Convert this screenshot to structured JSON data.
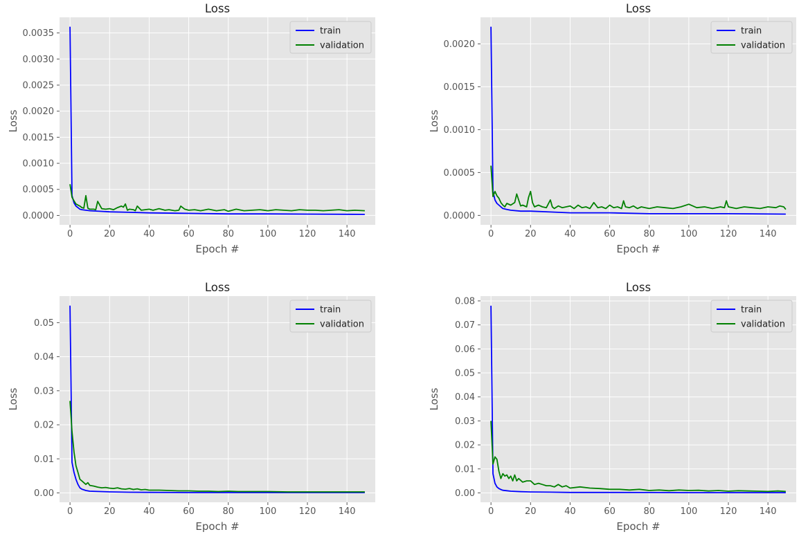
{
  "chart_data": [
    {
      "type": "line",
      "title": "Loss",
      "xlabel": "Epoch #",
      "ylabel": "Loss",
      "xlim": [
        -5.3,
        154.3
      ],
      "ylim": [
        -0.00018,
        0.0038
      ],
      "xticks": [
        "0",
        "20",
        "40",
        "60",
        "80",
        "100",
        "120",
        "140"
      ],
      "yticks": [
        "0.0000",
        "0.0005",
        "0.0010",
        "0.0015",
        "0.0020",
        "0.0025",
        "0.0030",
        "0.0035"
      ],
      "grid": true,
      "legend": "top-right",
      "legend_entries": [
        "train",
        "validation"
      ],
      "series": [
        {
          "name": "train",
          "color": "#0000ff",
          "x": [
            0,
            1,
            2,
            3,
            4,
            5,
            6,
            8,
            10,
            15,
            20,
            30,
            40,
            60,
            80,
            100,
            120,
            149
          ],
          "y": [
            0.00362,
            0.00038,
            0.00024,
            0.00018,
            0.00015,
            0.00012,
            0.00011,
            0.0001,
            9e-05,
            8e-05,
            7e-05,
            6e-05,
            5e-05,
            4e-05,
            3e-05,
            3e-05,
            2.5e-05,
            2e-05
          ]
        },
        {
          "name": "validation",
          "color": "#008000",
          "x": [
            0,
            1,
            2,
            3,
            4,
            5,
            6,
            7,
            8,
            9,
            10,
            12,
            13,
            14,
            16,
            18,
            20,
            22,
            24,
            26,
            27,
            28,
            29,
            30,
            32,
            33,
            34,
            36,
            38,
            40,
            42,
            45,
            48,
            50,
            53,
            55,
            56,
            58,
            60,
            63,
            66,
            70,
            74,
            78,
            80,
            84,
            88,
            92,
            96,
            100,
            104,
            108,
            112,
            116,
            120,
            124,
            128,
            132,
            136,
            140,
            144,
            149
          ],
          "y": [
            0.0006,
            0.00035,
            0.00028,
            0.00022,
            0.0002,
            0.00018,
            0.00015,
            0.00014,
            0.00038,
            0.00014,
            0.00012,
            0.00012,
            0.00011,
            0.00027,
            0.00013,
            0.00012,
            0.00013,
            0.00011,
            0.00015,
            0.00018,
            0.00016,
            0.00022,
            0.0001,
            0.00012,
            0.00011,
            9e-05,
            0.00018,
            0.0001,
            0.00011,
            0.00012,
            0.0001,
            0.00013,
            0.0001,
            0.00011,
            9e-05,
            0.0001,
            0.00018,
            0.00012,
            0.0001,
            0.00011,
            9e-05,
            0.00012,
            9e-05,
            0.00011,
            8e-05,
            0.00012,
            9e-05,
            0.0001,
            0.00011,
            9e-05,
            0.00011,
            0.0001,
            9e-05,
            0.00011,
            0.0001,
            0.0001,
            9e-05,
            0.0001,
            0.00011,
            9e-05,
            0.0001,
            9e-05
          ]
        }
      ]
    },
    {
      "type": "line",
      "title": "Loss",
      "xlabel": "Epoch #",
      "ylabel": "Loss",
      "xlim": [
        -5.3,
        154.3
      ],
      "ylim": [
        -0.00011,
        0.00231
      ],
      "xticks": [
        "0",
        "20",
        "40",
        "60",
        "80",
        "100",
        "120",
        "140"
      ],
      "yticks": [
        "0.0000",
        "0.0005",
        "0.0010",
        "0.0015",
        "0.0020"
      ],
      "grid": true,
      "legend": "top-right",
      "legend_entries": [
        "train",
        "validation"
      ],
      "series": [
        {
          "name": "train",
          "color": "#0000ff",
          "x": [
            0,
            1,
            2,
            3,
            4,
            5,
            6,
            8,
            10,
            15,
            20,
            30,
            40,
            60,
            80,
            100,
            120,
            149
          ],
          "y": [
            0.0022,
            0.00028,
            0.00018,
            0.00014,
            0.00012,
            0.0001,
            8e-05,
            7e-05,
            6e-05,
            5e-05,
            5e-05,
            4e-05,
            3e-05,
            3e-05,
            2e-05,
            2e-05,
            2e-05,
            1.5e-05
          ]
        },
        {
          "name": "validation",
          "color": "#008000",
          "x": [
            0,
            1,
            2,
            3,
            4,
            5,
            6,
            7,
            8,
            10,
            12,
            13,
            14,
            15,
            16,
            18,
            19,
            20,
            21,
            22,
            24,
            26,
            28,
            30,
            31,
            32,
            34,
            36,
            38,
            40,
            42,
            44,
            46,
            48,
            50,
            52,
            54,
            56,
            58,
            60,
            62,
            64,
            66,
            67,
            68,
            70,
            72,
            74,
            76,
            78,
            80,
            84,
            88,
            92,
            96,
            100,
            104,
            108,
            112,
            116,
            118,
            119,
            120,
            124,
            128,
            132,
            136,
            140,
            144,
            146,
            148,
            149
          ],
          "y": [
            0.00058,
            0.00022,
            0.00028,
            0.00023,
            0.0002,
            0.00015,
            0.00012,
            0.0001,
            0.00014,
            0.00012,
            0.00015,
            0.00025,
            0.00018,
            0.00011,
            0.00012,
            0.0001,
            0.00021,
            0.00028,
            0.00015,
            0.0001,
            0.00012,
            0.0001,
            9e-05,
            0.00018,
            0.0001,
            8e-05,
            0.00011,
            9e-05,
            0.0001,
            0.00011,
            8e-05,
            0.00012,
            9e-05,
            0.0001,
            8e-05,
            0.00015,
            9e-05,
            0.0001,
            8e-05,
            0.00012,
            9e-05,
            0.0001,
            8e-05,
            0.00017,
            0.0001,
            9e-05,
            0.00011,
            8e-05,
            0.0001,
            9e-05,
            8e-05,
            0.0001,
            9e-05,
            8e-05,
            0.0001,
            0.00013,
            9e-05,
            0.0001,
            8e-05,
            0.0001,
            9e-05,
            0.00017,
            0.0001,
            8e-05,
            0.0001,
            9e-05,
            8e-05,
            0.0001,
            9e-05,
            0.00011,
            0.0001,
            7e-05
          ]
        }
      ]
    },
    {
      "type": "line",
      "title": "Loss",
      "xlabel": "Epoch #",
      "ylabel": "Loss",
      "xlim": [
        -5.3,
        154.3
      ],
      "ylim": [
        -0.00275,
        0.0578
      ],
      "xticks": [
        "0",
        "20",
        "40",
        "60",
        "80",
        "100",
        "120",
        "140"
      ],
      "yticks": [
        "0.00",
        "0.01",
        "0.02",
        "0.03",
        "0.04",
        "0.05"
      ],
      "grid": true,
      "legend": "top-right",
      "legend_entries": [
        "train",
        "validation"
      ],
      "series": [
        {
          "name": "train",
          "color": "#0000ff",
          "x": [
            0,
            1,
            2,
            3,
            4,
            5,
            6,
            7,
            8,
            10,
            15,
            20,
            30,
            40,
            60,
            80,
            100,
            120,
            149
          ],
          "y": [
            0.055,
            0.009,
            0.006,
            0.004,
            0.0025,
            0.0015,
            0.0011,
            0.0009,
            0.0007,
            0.0005,
            0.0004,
            0.0003,
            0.0002,
            0.00015,
            0.0001,
            0.0001,
            0.0001,
            0.0001,
            0.0001
          ]
        },
        {
          "name": "validation",
          "color": "#008000",
          "x": [
            0,
            1,
            2,
            3,
            4,
            5,
            6,
            7,
            8,
            9,
            10,
            12,
            14,
            16,
            18,
            20,
            22,
            24,
            26,
            28,
            30,
            32,
            34,
            36,
            38,
            40,
            45,
            50,
            55,
            60,
            65,
            70,
            75,
            80,
            85,
            90,
            95,
            100,
            110,
            120,
            130,
            140,
            149
          ],
          "y": [
            0.027,
            0.018,
            0.012,
            0.008,
            0.006,
            0.004,
            0.0035,
            0.003,
            0.0025,
            0.003,
            0.0022,
            0.002,
            0.0017,
            0.0015,
            0.0016,
            0.0014,
            0.0013,
            0.0015,
            0.0012,
            0.0011,
            0.0013,
            0.001,
            0.0012,
            0.0009,
            0.001,
            0.0008,
            0.0008,
            0.0007,
            0.0006,
            0.0006,
            0.0005,
            0.0005,
            0.0004,
            0.0005,
            0.0004,
            0.0004,
            0.0004,
            0.0004,
            0.0003,
            0.0003,
            0.0003,
            0.0003,
            0.0003
          ]
        }
      ]
    },
    {
      "type": "line",
      "title": "Loss",
      "xlabel": "Epoch #",
      "ylabel": "Loss",
      "xlim": [
        -5.3,
        154.3
      ],
      "ylim": [
        -0.0039,
        0.082
      ],
      "xticks": [
        "0",
        "20",
        "40",
        "60",
        "80",
        "100",
        "120",
        "140"
      ],
      "yticks": [
        "0.00",
        "0.01",
        "0.02",
        "0.03",
        "0.04",
        "0.05",
        "0.06",
        "0.07",
        "0.08"
      ],
      "grid": true,
      "legend": "top-right",
      "legend_entries": [
        "train",
        "validation"
      ],
      "series": [
        {
          "name": "train",
          "color": "#0000ff",
          "x": [
            0,
            1,
            2,
            3,
            4,
            5,
            6,
            8,
            10,
            15,
            20,
            30,
            40,
            60,
            80,
            100,
            120,
            149
          ],
          "y": [
            0.078,
            0.008,
            0.004,
            0.0025,
            0.0018,
            0.0014,
            0.0011,
            0.0009,
            0.0007,
            0.0005,
            0.0004,
            0.0003,
            0.0002,
            0.0002,
            0.00015,
            0.00012,
            0.0001,
            0.0001
          ]
        },
        {
          "name": "validation",
          "color": "#008000",
          "x": [
            0,
            1,
            2,
            3,
            4,
            5,
            6,
            7,
            8,
            9,
            10,
            11,
            12,
            13,
            14,
            16,
            18,
            20,
            22,
            24,
            26,
            28,
            30,
            32,
            34,
            36,
            38,
            40,
            45,
            50,
            55,
            60,
            65,
            70,
            75,
            80,
            85,
            90,
            95,
            100,
            105,
            110,
            115,
            120,
            125,
            130,
            135,
            140,
            145,
            149
          ],
          "y": [
            0.03,
            0.012,
            0.015,
            0.014,
            0.009,
            0.006,
            0.008,
            0.007,
            0.0075,
            0.006,
            0.007,
            0.005,
            0.0075,
            0.005,
            0.006,
            0.0045,
            0.005,
            0.005,
            0.0035,
            0.004,
            0.0035,
            0.003,
            0.003,
            0.0025,
            0.0035,
            0.0025,
            0.003,
            0.002,
            0.0025,
            0.002,
            0.0018,
            0.0015,
            0.0015,
            0.0012,
            0.0015,
            0.001,
            0.0012,
            0.0009,
            0.0012,
            0.001,
            0.0011,
            0.0008,
            0.001,
            0.0007,
            0.0009,
            0.0008,
            0.0007,
            0.0006,
            0.0008,
            0.0006
          ]
        }
      ]
    }
  ]
}
